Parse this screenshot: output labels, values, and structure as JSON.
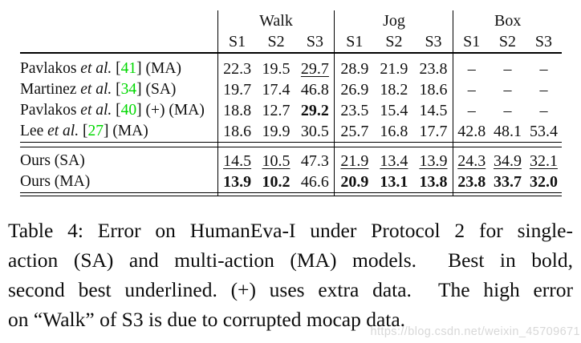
{
  "colors": {
    "citation_green": "#00d800",
    "text_black": "#111111",
    "watermark_gray": "#d8d8d8"
  },
  "table": {
    "groups": [
      {
        "label": "Walk"
      },
      {
        "label": "Jog"
      },
      {
        "label": "Box"
      }
    ],
    "subcolumns": [
      "S1",
      "S2",
      "S3",
      "S1",
      "S2",
      "S3",
      "S1",
      "S2",
      "S3"
    ],
    "rows": [
      {
        "section": "main",
        "label_parts": [
          {
            "t": "Pavlakos ",
            "s": "p"
          },
          {
            "t": "et al.",
            "s": "i"
          },
          {
            "t": " [",
            "s": "p"
          },
          {
            "t": "41",
            "s": "g"
          },
          {
            "t": "] (MA)",
            "s": "p"
          }
        ],
        "cells": [
          {
            "v": "22.3",
            "s": "p"
          },
          {
            "v": "19.5",
            "s": "p"
          },
          {
            "v": "29.7",
            "s": "u"
          },
          {
            "v": "28.9",
            "s": "p"
          },
          {
            "v": "21.9",
            "s": "p"
          },
          {
            "v": "23.8",
            "s": "p"
          },
          {
            "v": "–",
            "s": "p"
          },
          {
            "v": "–",
            "s": "p"
          },
          {
            "v": "–",
            "s": "p"
          }
        ]
      },
      {
        "section": "main",
        "label_parts": [
          {
            "t": "Martinez ",
            "s": "p"
          },
          {
            "t": "et al.",
            "s": "i"
          },
          {
            "t": " [",
            "s": "p"
          },
          {
            "t": "34",
            "s": "g"
          },
          {
            "t": "] (SA)",
            "s": "p"
          }
        ],
        "cells": [
          {
            "v": "19.7",
            "s": "p"
          },
          {
            "v": "17.4",
            "s": "p"
          },
          {
            "v": "46.8",
            "s": "p"
          },
          {
            "v": "26.9",
            "s": "p"
          },
          {
            "v": "18.2",
            "s": "p"
          },
          {
            "v": "18.6",
            "s": "p"
          },
          {
            "v": "–",
            "s": "p"
          },
          {
            "v": "–",
            "s": "p"
          },
          {
            "v": "–",
            "s": "p"
          }
        ]
      },
      {
        "section": "main",
        "label_parts": [
          {
            "t": "Pavlakos ",
            "s": "p"
          },
          {
            "t": "et al.",
            "s": "i"
          },
          {
            "t": " [",
            "s": "p"
          },
          {
            "t": "40",
            "s": "g"
          },
          {
            "t": "] (+) (MA)",
            "s": "p"
          }
        ],
        "cells": [
          {
            "v": "18.8",
            "s": "p"
          },
          {
            "v": "12.7",
            "s": "p"
          },
          {
            "v": "29.2",
            "s": "b"
          },
          {
            "v": "23.5",
            "s": "p"
          },
          {
            "v": "15.4",
            "s": "p"
          },
          {
            "v": "14.5",
            "s": "p"
          },
          {
            "v": "–",
            "s": "p"
          },
          {
            "v": "–",
            "s": "p"
          },
          {
            "v": "–",
            "s": "p"
          }
        ]
      },
      {
        "section": "main",
        "label_parts": [
          {
            "t": "Lee ",
            "s": "p"
          },
          {
            "t": "et al.",
            "s": "i"
          },
          {
            "t": " [",
            "s": "p"
          },
          {
            "t": "27",
            "s": "g"
          },
          {
            "t": "] (MA)",
            "s": "p"
          }
        ],
        "cells": [
          {
            "v": "18.6",
            "s": "p"
          },
          {
            "v": "19.9",
            "s": "p"
          },
          {
            "v": "30.5",
            "s": "p"
          },
          {
            "v": "25.7",
            "s": "p"
          },
          {
            "v": "16.8",
            "s": "p"
          },
          {
            "v": "17.7",
            "s": "p"
          },
          {
            "v": "42.8",
            "s": "p"
          },
          {
            "v": "48.1",
            "s": "p"
          },
          {
            "v": "53.4",
            "s": "p"
          }
        ]
      },
      {
        "section": "ours",
        "label_parts": [
          {
            "t": "Ours (SA)",
            "s": "p"
          }
        ],
        "cells": [
          {
            "v": "14.5",
            "s": "u"
          },
          {
            "v": "10.5",
            "s": "u"
          },
          {
            "v": "47.3",
            "s": "p"
          },
          {
            "v": "21.9",
            "s": "u"
          },
          {
            "v": "13.4",
            "s": "u"
          },
          {
            "v": "13.9",
            "s": "u"
          },
          {
            "v": "24.3",
            "s": "u"
          },
          {
            "v": "34.9",
            "s": "u"
          },
          {
            "v": "32.1",
            "s": "u"
          }
        ]
      },
      {
        "section": "ours",
        "label_parts": [
          {
            "t": "Ours (MA)",
            "s": "p"
          }
        ],
        "cells": [
          {
            "v": "13.9",
            "s": "b"
          },
          {
            "v": "10.2",
            "s": "b"
          },
          {
            "v": "46.6",
            "s": "p"
          },
          {
            "v": "20.9",
            "s": "b"
          },
          {
            "v": "13.1",
            "s": "b"
          },
          {
            "v": "13.8",
            "s": "b"
          },
          {
            "v": "23.8",
            "s": "b"
          },
          {
            "v": "33.7",
            "s": "b"
          },
          {
            "v": "32.0",
            "s": "b"
          }
        ]
      }
    ]
  },
  "caption": {
    "lines": [
      "Table 4: Error on HumanEva-I under Protocol 2 for single-",
      "action (SA) and multi-action (MA) models.  Best in bold,",
      "second best underlined. (+) uses extra data.  The high error",
      "on “Walk” of S3 is due to corrupted mocap data."
    ]
  },
  "watermark": "https://blog.csdn.net/weixin_45709671"
}
